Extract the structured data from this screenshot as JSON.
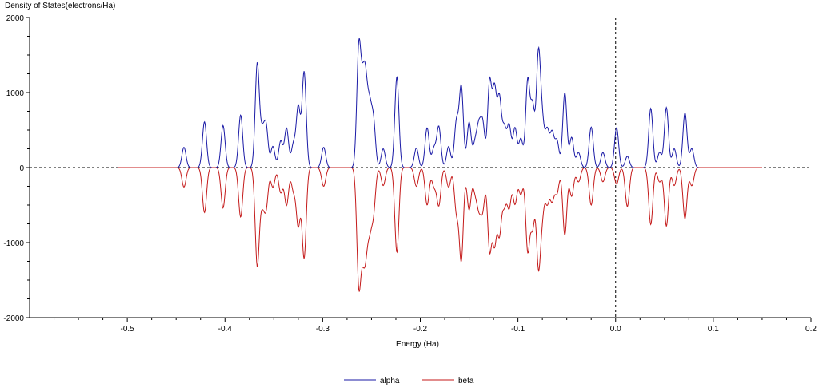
{
  "chart_data": {
    "type": "line",
    "ylabel": "Density of States(electrons/Ha)",
    "xlabel": "Energy (Ha)",
    "xlim": [
      -0.6,
      0.2
    ],
    "ylim": [
      -2000,
      2000
    ],
    "x_ticks": [
      "-0.5",
      "-0.4",
      "-0.3",
      "-0.2",
      "-0.1",
      "0.0",
      "0.1",
      "0.2"
    ],
    "y_ticks": [
      "2000",
      "1000",
      "0",
      "-1000",
      "-2000"
    ],
    "reference_lines": {
      "horizontal_y": 0,
      "vertical_x": 0.0
    },
    "legend_position": "bottom-center",
    "series": [
      {
        "name": "alpha",
        "color": "#1a1aa6",
        "sign": 1,
        "x_range": [
          -0.51,
          0.15
        ],
        "peaks": [
          [
            -0.442,
            270
          ],
          [
            -0.421,
            610
          ],
          [
            -0.402,
            560
          ],
          [
            -0.384,
            700
          ],
          [
            -0.367,
            1380
          ],
          [
            -0.362,
            420
          ],
          [
            -0.358,
            540
          ],
          [
            -0.351,
            280
          ],
          [
            -0.343,
            350
          ],
          [
            -0.337,
            520
          ],
          [
            -0.33,
            300
          ],
          [
            -0.325,
            800
          ],
          [
            -0.319,
            1270
          ],
          [
            -0.299,
            270
          ],
          [
            -0.263,
            1560
          ],
          [
            -0.259,
            800
          ],
          [
            -0.256,
            940
          ],
          [
            -0.252,
            720
          ],
          [
            -0.248,
            600
          ],
          [
            -0.238,
            250
          ],
          [
            -0.224,
            1210
          ],
          [
            -0.204,
            260
          ],
          [
            -0.193,
            530
          ],
          [
            -0.186,
            250
          ],
          [
            -0.181,
            540
          ],
          [
            -0.171,
            280
          ],
          [
            -0.163,
            600
          ],
          [
            -0.158,
            1070
          ],
          [
            -0.15,
            600
          ],
          [
            -0.144,
            300
          ],
          [
            -0.14,
            500
          ],
          [
            -0.136,
            560
          ],
          [
            -0.129,
            1130
          ],
          [
            -0.124,
            1010
          ],
          [
            -0.119,
            900
          ],
          [
            -0.114,
            500
          ],
          [
            -0.109,
            550
          ],
          [
            -0.103,
            520
          ],
          [
            -0.097,
            380
          ],
          [
            -0.09,
            1150
          ],
          [
            -0.085,
            800
          ],
          [
            -0.079,
            1490
          ],
          [
            -0.075,
            550
          ],
          [
            -0.07,
            480
          ],
          [
            -0.065,
            450
          ],
          [
            -0.06,
            350
          ],
          [
            -0.052,
            1000
          ],
          [
            -0.045,
            400
          ],
          [
            -0.038,
            200
          ],
          [
            -0.025,
            540
          ],
          [
            -0.013,
            200
          ],
          [
            0.001,
            530
          ],
          [
            0.012,
            150
          ],
          [
            0.036,
            790
          ],
          [
            0.045,
            200
          ],
          [
            0.052,
            800
          ],
          [
            0.06,
            250
          ],
          [
            0.071,
            730
          ],
          [
            0.078,
            250
          ]
        ]
      },
      {
        "name": "beta",
        "color": "#c41a1a",
        "sign": -1,
        "x_range": [
          -0.51,
          0.15
        ],
        "peaks": [
          [
            -0.442,
            260
          ],
          [
            -0.421,
            600
          ],
          [
            -0.402,
            540
          ],
          [
            -0.384,
            660
          ],
          [
            -0.367,
            1300
          ],
          [
            -0.362,
            400
          ],
          [
            -0.358,
            520
          ],
          [
            -0.351,
            260
          ],
          [
            -0.343,
            330
          ],
          [
            -0.337,
            500
          ],
          [
            -0.33,
            290
          ],
          [
            -0.325,
            760
          ],
          [
            -0.319,
            1200
          ],
          [
            -0.299,
            250
          ],
          [
            -0.263,
            1500
          ],
          [
            -0.259,
            760
          ],
          [
            -0.256,
            880
          ],
          [
            -0.252,
            680
          ],
          [
            -0.248,
            560
          ],
          [
            -0.238,
            240
          ],
          [
            -0.224,
            1130
          ],
          [
            -0.204,
            250
          ],
          [
            -0.193,
            500
          ],
          [
            -0.186,
            240
          ],
          [
            -0.181,
            500
          ],
          [
            -0.171,
            260
          ],
          [
            -0.163,
            570
          ],
          [
            -0.158,
            1220
          ],
          [
            -0.15,
            560
          ],
          [
            -0.144,
            280
          ],
          [
            -0.14,
            470
          ],
          [
            -0.136,
            520
          ],
          [
            -0.129,
            1080
          ],
          [
            -0.124,
            960
          ],
          [
            -0.119,
            850
          ],
          [
            -0.114,
            470
          ],
          [
            -0.109,
            520
          ],
          [
            -0.103,
            480
          ],
          [
            -0.097,
            350
          ],
          [
            -0.09,
            1090
          ],
          [
            -0.085,
            760
          ],
          [
            -0.079,
            1270
          ],
          [
            -0.075,
            520
          ],
          [
            -0.07,
            450
          ],
          [
            -0.065,
            420
          ],
          [
            -0.06,
            330
          ],
          [
            -0.052,
            900
          ],
          [
            -0.045,
            380
          ],
          [
            -0.038,
            190
          ],
          [
            -0.025,
            500
          ],
          [
            -0.013,
            190
          ],
          [
            0.001,
            220
          ],
          [
            0.012,
            520
          ],
          [
            0.036,
            760
          ],
          [
            0.045,
            190
          ],
          [
            0.052,
            780
          ],
          [
            0.06,
            240
          ],
          [
            0.071,
            680
          ],
          [
            0.078,
            240
          ]
        ]
      }
    ]
  }
}
